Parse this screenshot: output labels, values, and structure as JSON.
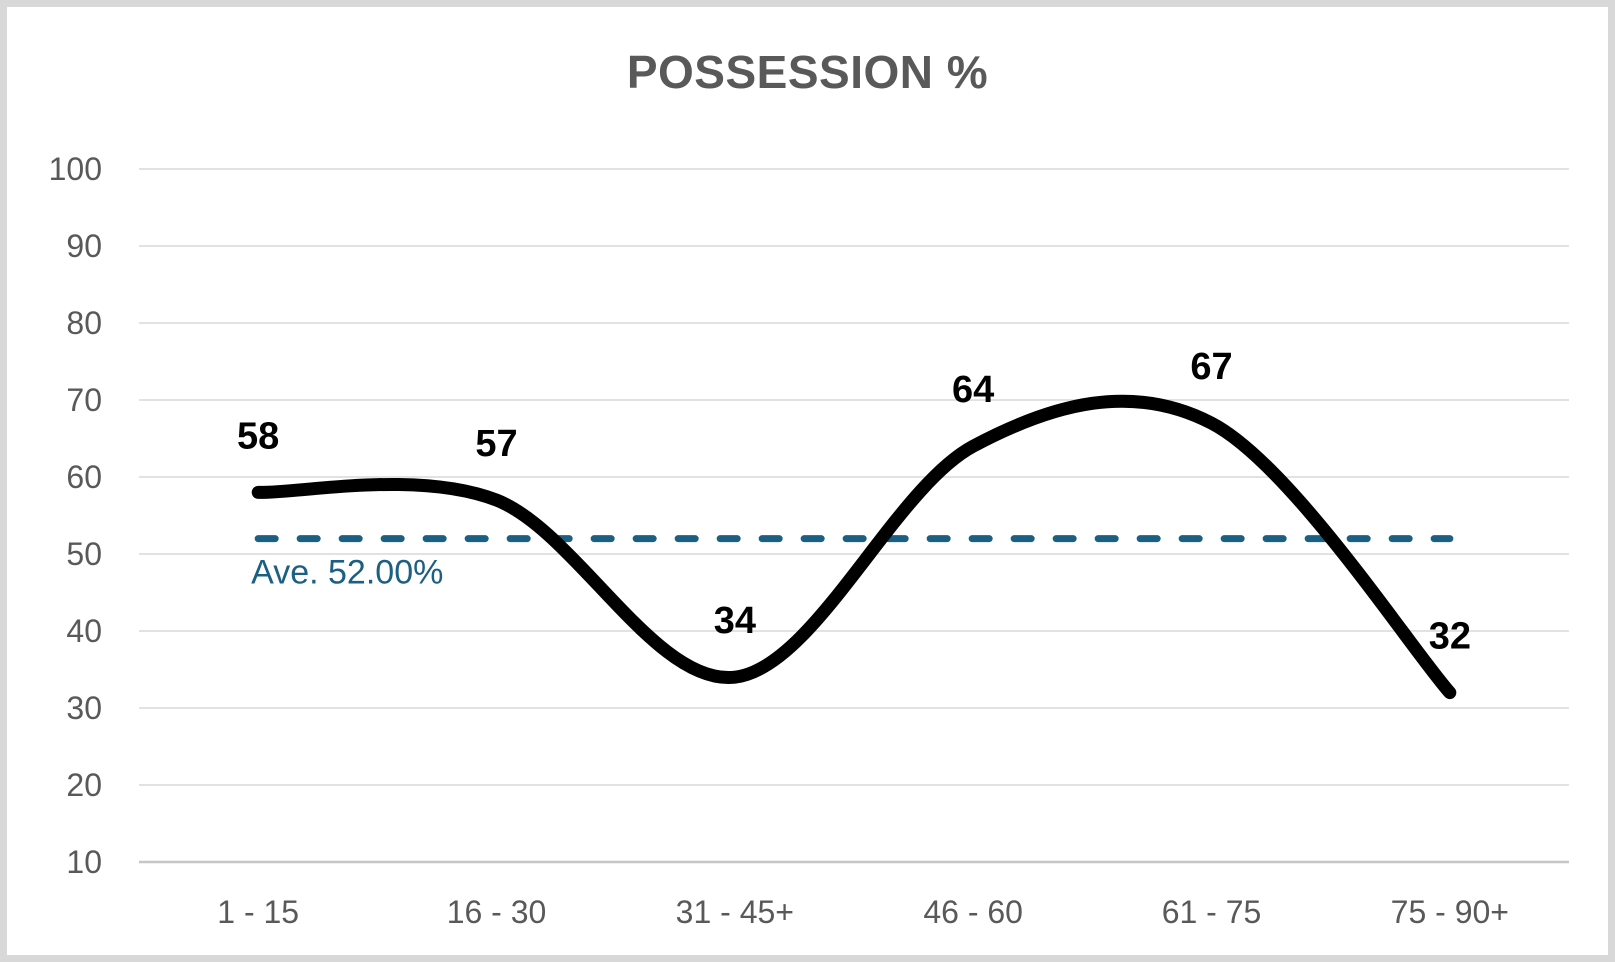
{
  "frame": {
    "background": "#FFFFFF",
    "border_color": "#D8D8D8"
  },
  "chart_data": {
    "type": "line",
    "title": "POSSESSION %",
    "categories": [
      "1 - 15",
      "16 - 30",
      "31 - 45+",
      "46 - 60",
      "61 - 75",
      "75 - 90+"
    ],
    "series": [
      {
        "name": "Possession %",
        "values": [
          58,
          57,
          34,
          64,
          67,
          32
        ],
        "data_labels": [
          "58",
          "57",
          "34",
          "64",
          "67",
          "32"
        ],
        "color": "#000000",
        "smooth": true
      }
    ],
    "average_line": {
      "value": 52,
      "label": "Ave. 52.00%",
      "color": "#1B6083",
      "style": "dashed"
    },
    "xlabel": "",
    "ylabel": "",
    "ylim": [
      10,
      100
    ],
    "yticks": [
      10,
      20,
      30,
      40,
      50,
      60,
      70,
      80,
      90,
      100
    ],
    "grid": "horizontal",
    "legend": "none",
    "colors": {
      "title": "#595959",
      "axis_text": "#595959",
      "gridline": "#E2E2E2",
      "axis_line": "#C6C6C6",
      "data_label": "#000000"
    }
  }
}
